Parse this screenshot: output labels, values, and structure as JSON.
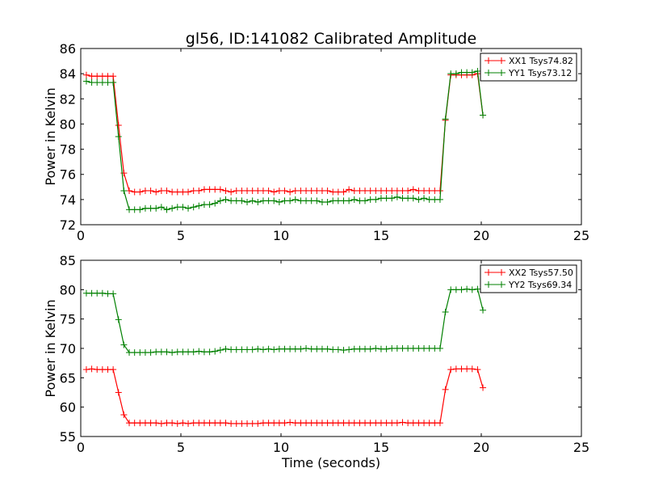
{
  "title": "gl56, ID:141082 Calibrated Amplitude",
  "chart_data": [
    {
      "type": "line",
      "title": "gl56, ID:141082 Calibrated Amplitude",
      "xlabel": "",
      "ylabel": "Power in Kelvin",
      "xlim": [
        0,
        25
      ],
      "ylim": [
        72,
        86
      ],
      "xticks": [
        0,
        5,
        10,
        15,
        20,
        25
      ],
      "yticks": [
        72,
        74,
        76,
        78,
        80,
        82,
        84,
        86
      ],
      "legend_position": "top-right",
      "x_start": 0.28,
      "x_step": 0.2676,
      "series": [
        {
          "name": "XX1 Tsys74.82",
          "color": "#ff0000",
          "values": [
            83.9,
            83.8,
            83.8,
            83.8,
            83.8,
            83.8,
            79.9,
            76.1,
            74.7,
            74.6,
            74.6,
            74.7,
            74.7,
            74.6,
            74.7,
            74.7,
            74.6,
            74.6,
            74.6,
            74.6,
            74.7,
            74.7,
            74.8,
            74.8,
            74.8,
            74.8,
            74.7,
            74.6,
            74.7,
            74.7,
            74.7,
            74.7,
            74.7,
            74.7,
            74.7,
            74.6,
            74.7,
            74.7,
            74.6,
            74.7,
            74.7,
            74.7,
            74.7,
            74.7,
            74.7,
            74.7,
            74.6,
            74.6,
            74.6,
            74.8,
            74.7,
            74.7,
            74.7,
            74.7,
            74.7,
            74.7,
            74.7,
            74.7,
            74.7,
            74.7,
            74.7,
            74.8,
            74.7,
            74.7,
            74.7,
            74.7,
            74.7,
            80.3,
            83.9,
            83.9,
            83.9,
            83.9,
            83.9,
            84.0,
            80.7
          ]
        },
        {
          "name": "YY1 Tsys73.12",
          "color": "#008000",
          "values": [
            83.4,
            83.3,
            83.3,
            83.3,
            83.3,
            83.3,
            79.0,
            74.7,
            73.2,
            73.2,
            73.2,
            73.3,
            73.3,
            73.3,
            73.4,
            73.2,
            73.3,
            73.4,
            73.4,
            73.3,
            73.4,
            73.5,
            73.6,
            73.6,
            73.7,
            73.9,
            74.0,
            73.9,
            73.9,
            73.9,
            73.8,
            73.9,
            73.8,
            73.9,
            73.9,
            73.9,
            73.8,
            73.9,
            73.9,
            74.0,
            73.9,
            73.9,
            73.9,
            73.9,
            73.8,
            73.8,
            73.9,
            73.9,
            73.9,
            73.9,
            74.0,
            73.9,
            73.9,
            74.0,
            74.0,
            74.1,
            74.1,
            74.1,
            74.2,
            74.1,
            74.1,
            74.1,
            74.0,
            74.1,
            74.0,
            74.0,
            74.0,
            80.4,
            84.0,
            84.0,
            84.1,
            84.1,
            84.1,
            84.2,
            80.7
          ]
        }
      ]
    },
    {
      "type": "line",
      "title": "",
      "xlabel": "Time (seconds)",
      "ylabel": "Power in Kelvin",
      "xlim": [
        0,
        25
      ],
      "ylim": [
        55,
        85
      ],
      "xticks": [
        0,
        5,
        10,
        15,
        20,
        25
      ],
      "yticks": [
        55,
        60,
        65,
        70,
        75,
        80,
        85
      ],
      "legend_position": "top-right",
      "x_start": 0.28,
      "x_step": 0.2676,
      "series": [
        {
          "name": "XX2 Tsys57.50",
          "color": "#ff0000",
          "values": [
            66.4,
            66.5,
            66.4,
            66.4,
            66.4,
            66.4,
            62.5,
            58.7,
            57.3,
            57.3,
            57.3,
            57.3,
            57.3,
            57.3,
            57.2,
            57.3,
            57.3,
            57.2,
            57.3,
            57.2,
            57.3,
            57.3,
            57.3,
            57.3,
            57.3,
            57.3,
            57.3,
            57.2,
            57.2,
            57.2,
            57.2,
            57.2,
            57.2,
            57.3,
            57.3,
            57.3,
            57.3,
            57.3,
            57.4,
            57.3,
            57.3,
            57.3,
            57.3,
            57.3,
            57.3,
            57.3,
            57.3,
            57.3,
            57.3,
            57.3,
            57.3,
            57.3,
            57.3,
            57.3,
            57.3,
            57.3,
            57.3,
            57.3,
            57.3,
            57.4,
            57.3,
            57.3,
            57.3,
            57.3,
            57.3,
            57.3,
            57.3,
            63.0,
            66.4,
            66.5,
            66.5,
            66.5,
            66.5,
            66.4,
            63.3
          ]
        },
        {
          "name": "YY2 Tsys69.34",
          "color": "#008000",
          "values": [
            79.4,
            79.4,
            79.4,
            79.4,
            79.3,
            79.3,
            74.9,
            70.6,
            69.3,
            69.3,
            69.3,
            69.3,
            69.3,
            69.4,
            69.4,
            69.4,
            69.3,
            69.4,
            69.4,
            69.4,
            69.4,
            69.5,
            69.4,
            69.4,
            69.5,
            69.7,
            69.9,
            69.8,
            69.8,
            69.8,
            69.8,
            69.8,
            69.9,
            69.8,
            69.9,
            69.8,
            69.9,
            69.9,
            69.9,
            69.9,
            69.9,
            70.0,
            69.9,
            69.9,
            69.9,
            69.9,
            69.8,
            69.8,
            69.7,
            69.8,
            69.9,
            69.9,
            69.9,
            69.9,
            70.0,
            69.9,
            69.9,
            70.0,
            70.0,
            70.0,
            70.0,
            70.0,
            70.0,
            70.0,
            70.0,
            70.0,
            70.0,
            76.2,
            80.0,
            80.0,
            80.0,
            80.1,
            80.0,
            80.1,
            76.5
          ]
        }
      ]
    }
  ]
}
